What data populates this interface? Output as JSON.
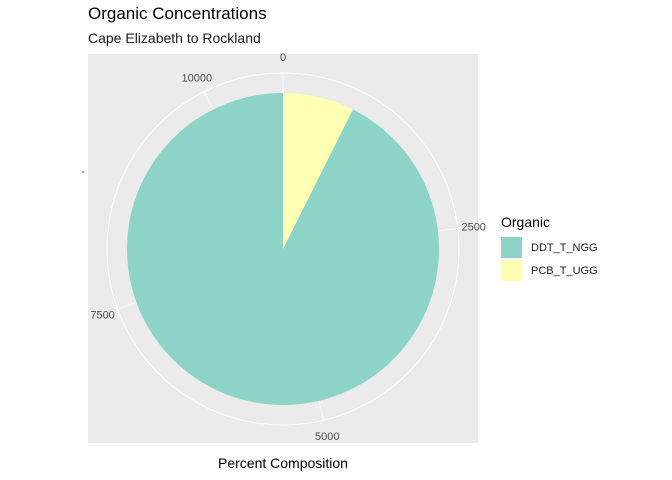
{
  "chart_data": {
    "type": "pie",
    "title": "Organic Concentrations",
    "subtitle": "Cape Elizabeth to Rockland",
    "xlabel": "Percent Composition",
    "ylabel": "",
    "legend_title": "Organic",
    "legend_position": "right",
    "grid": true,
    "total": 10800,
    "ticks": [
      0,
      2500,
      5000,
      7500,
      10000
    ],
    "series": [
      {
        "name": "PCB_T_UGG",
        "value": 800,
        "color": "#FFFFB3"
      },
      {
        "name": "DDT_T_NGG",
        "value": 10000,
        "color": "#8DD3C7"
      }
    ],
    "legend": [
      {
        "name": "DDT_T_NGG",
        "color": "#8DD3C7"
      },
      {
        "name": "PCB_T_UGG",
        "color": "#FFFFB3"
      }
    ],
    "y_tick_label": "-"
  }
}
